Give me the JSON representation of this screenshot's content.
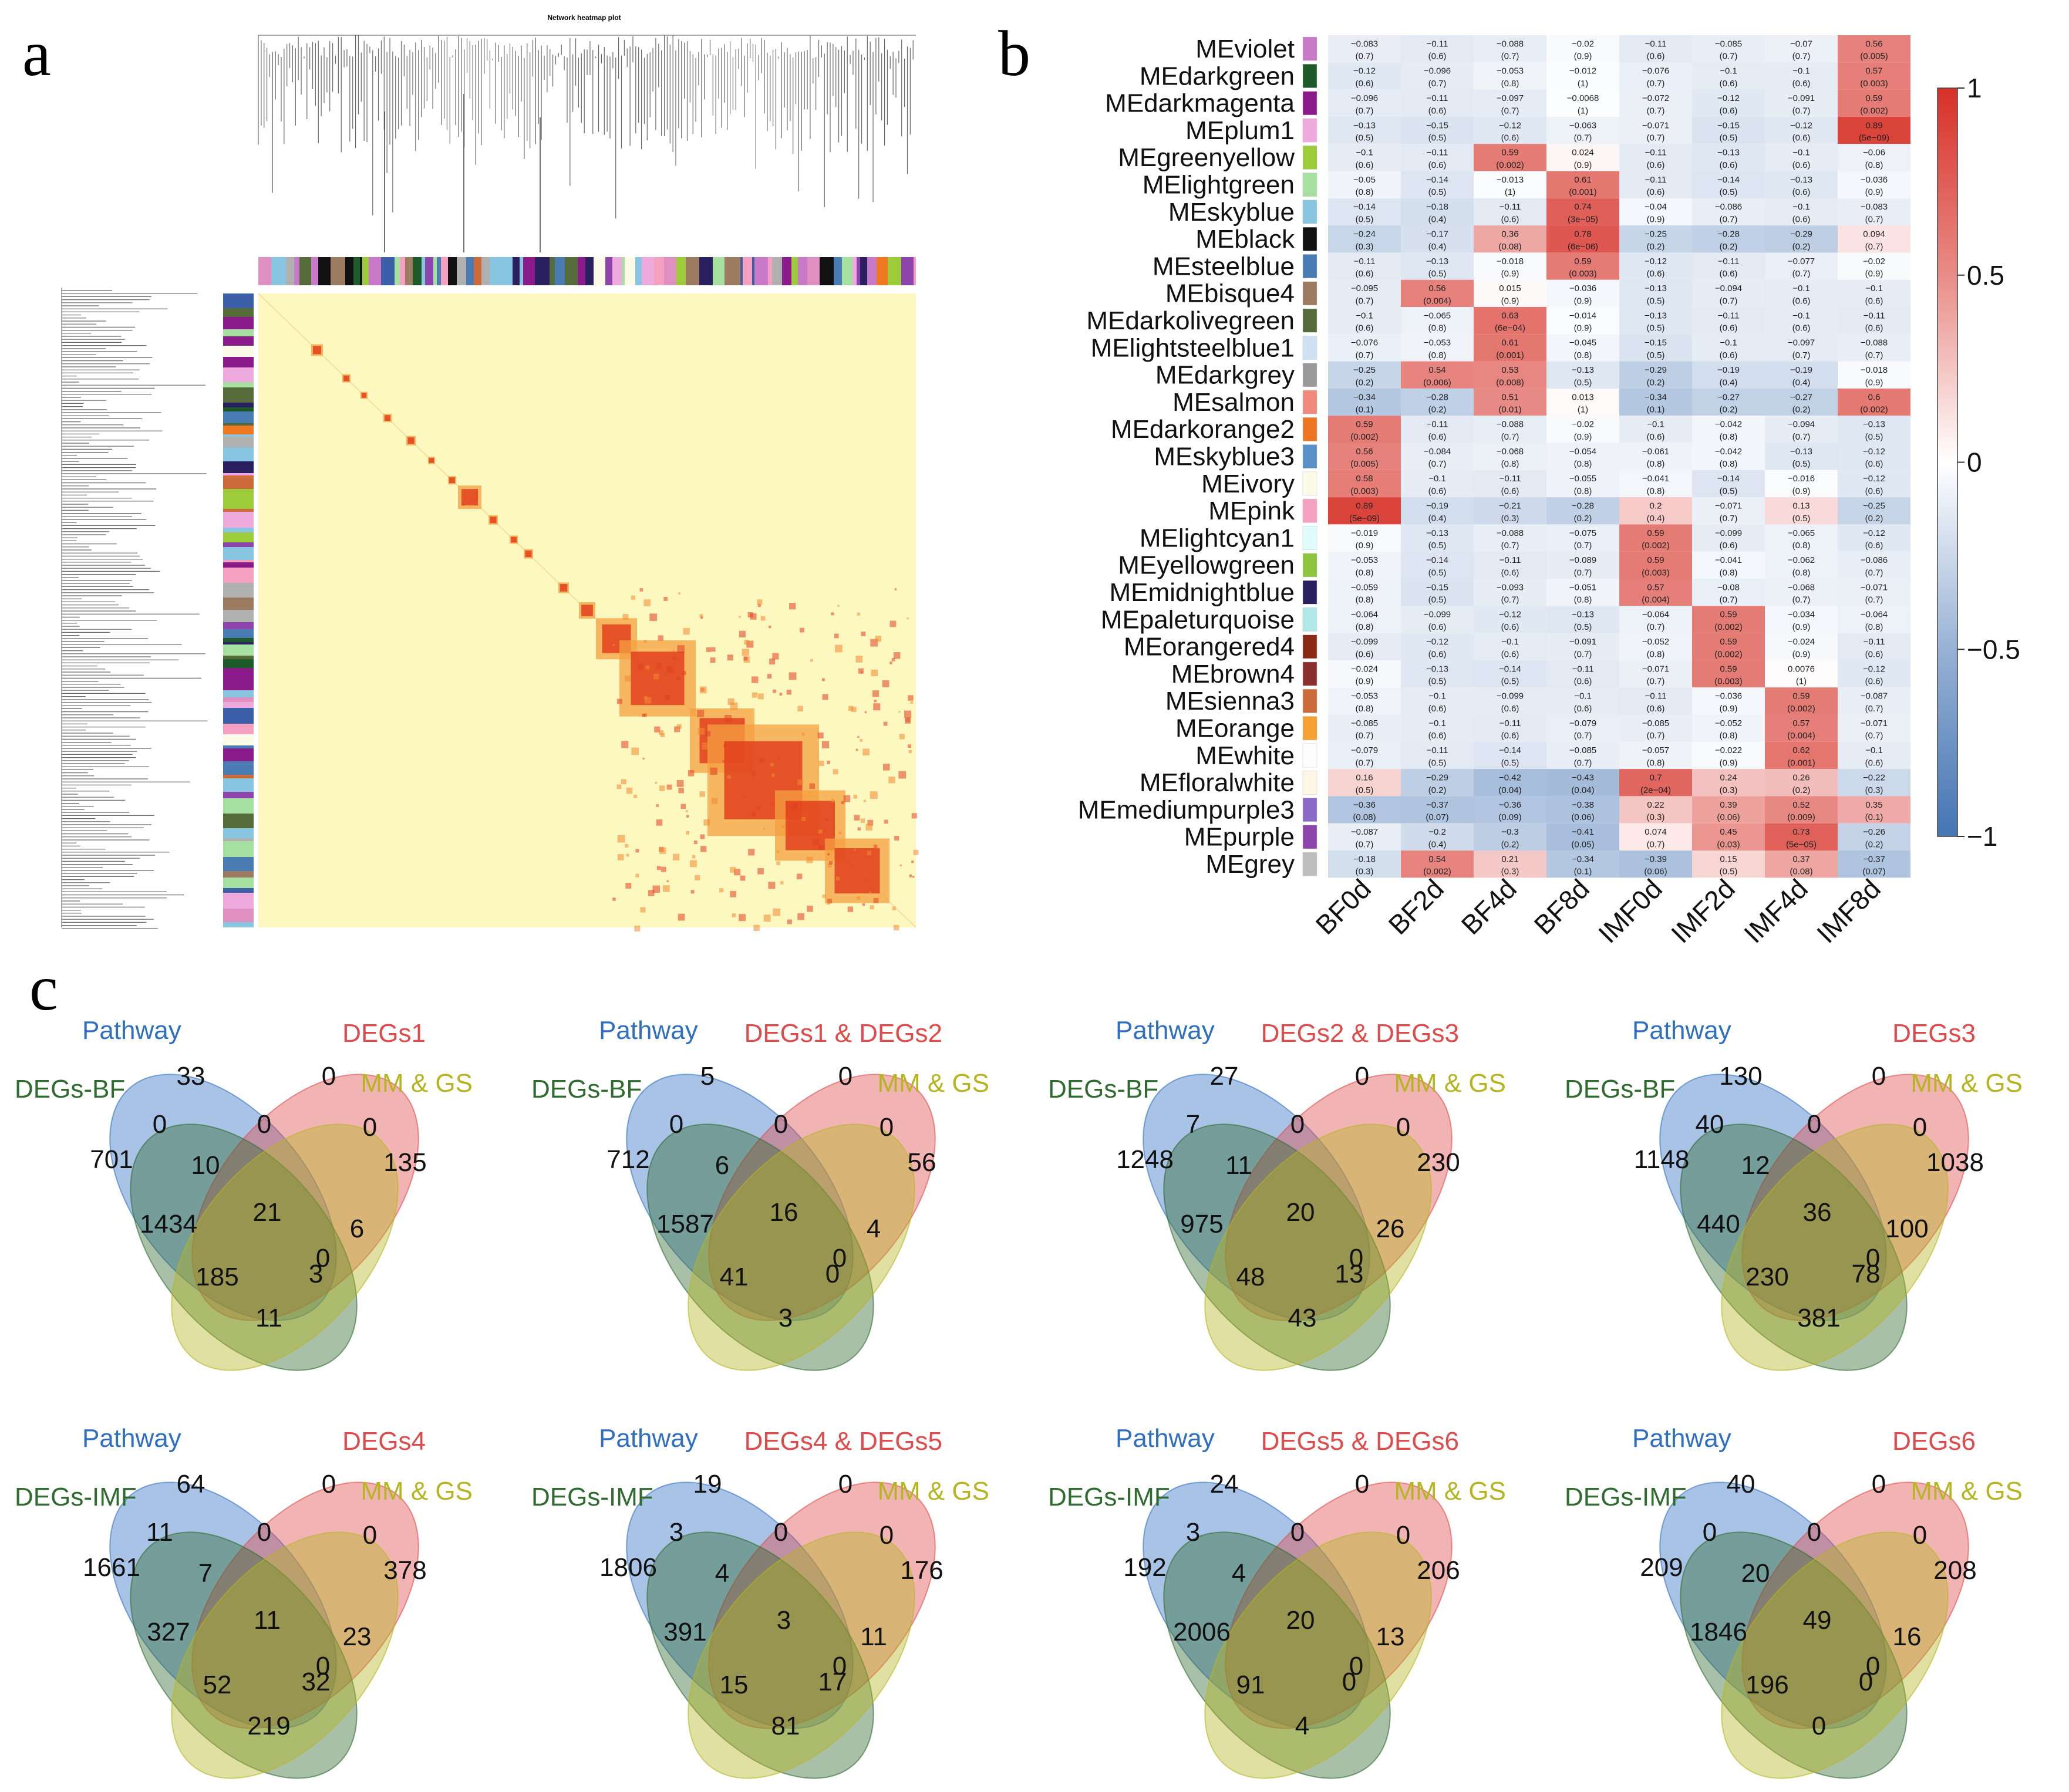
{
  "panels": {
    "a": "a",
    "b": "b",
    "c": "c"
  },
  "panel_a": {
    "title": "Network heatmap plot"
  },
  "panel_b": {
    "colorbar": {
      "ticks": [
        "1",
        "0.5",
        "0",
        "−0.5",
        "−1"
      ],
      "tick_values": [
        1,
        0.5,
        0,
        -0.5,
        -1
      ]
    },
    "headers": [
      "BF0d",
      "BF2d",
      "BF4d",
      "BF8d",
      "IMF0d",
      "IMF2d",
      "IMF4d",
      "IMF8d"
    ],
    "modules": [
      {
        "name": "MEviolet",
        "color": "#c87ac8"
      },
      {
        "name": "MEdarkgreen",
        "color": "#1e5a2a"
      },
      {
        "name": "MEdarkmagenta",
        "color": "#8b1a8b"
      },
      {
        "name": "MEplum1",
        "color": "#eeaadd"
      },
      {
        "name": "MEgreenyellow",
        "color": "#9ccc3a"
      },
      {
        "name": "MElightgreen",
        "color": "#a6e0a0"
      },
      {
        "name": "MEskyblue",
        "color": "#87c5e0"
      },
      {
        "name": "MEblack",
        "color": "#111111"
      },
      {
        "name": "MEsteelblue",
        "color": "#4a7cb4"
      },
      {
        "name": "MEbisque4",
        "color": "#9c7b60"
      },
      {
        "name": "MEdarkolivegreen",
        "color": "#556b3a"
      },
      {
        "name": "MElightsteelblue1",
        "color": "#cfe0f5"
      },
      {
        "name": "MEdarkgrey",
        "color": "#9a9a9a"
      },
      {
        "name": "MEsalmon",
        "color": "#f08a7a"
      },
      {
        "name": "MEdarkorange2",
        "color": "#ee7622"
      },
      {
        "name": "MEskyblue3",
        "color": "#5a8fc8"
      },
      {
        "name": "MEivory",
        "color": "#fbfbe8"
      },
      {
        "name": "MEpink",
        "color": "#f5a0c0"
      },
      {
        "name": "MElightcyan1",
        "color": "#e0fbfb"
      },
      {
        "name": "MEyellowgreen",
        "color": "#8ec440"
      },
      {
        "name": "MEmidnightblue",
        "color": "#2a2060"
      },
      {
        "name": "MEpaleturquoise",
        "color": "#b0e8e8"
      },
      {
        "name": "MEorangered4",
        "color": "#8b2a14"
      },
      {
        "name": "MEbrown4",
        "color": "#8b3030"
      },
      {
        "name": "MEsienna3",
        "color": "#cd6a3a"
      },
      {
        "name": "MEorange",
        "color": "#f5a030"
      },
      {
        "name": "MEwhite",
        "color": "#fdfdfd"
      },
      {
        "name": "MEfloralwhite",
        "color": "#fff6e6"
      },
      {
        "name": "MEmediumpurple3",
        "color": "#8a6ac8"
      },
      {
        "name": "MEpurple",
        "color": "#8e44ad"
      },
      {
        "name": "MEgrey",
        "color": "#bebebe"
      }
    ],
    "corr": [
      [
        -0.083,
        -0.11,
        -0.088,
        -0.02,
        -0.11,
        -0.085,
        -0.07,
        0.56
      ],
      [
        -0.12,
        -0.096,
        -0.053,
        -0.012,
        -0.076,
        -0.1,
        -0.1,
        0.57
      ],
      [
        -0.096,
        -0.11,
        -0.097,
        -0.0068,
        -0.072,
        -0.12,
        -0.091,
        0.59
      ],
      [
        -0.13,
        -0.15,
        -0.12,
        -0.063,
        -0.071,
        -0.15,
        -0.12,
        0.89
      ],
      [
        -0.1,
        -0.11,
        0.59,
        0.024,
        -0.11,
        -0.13,
        -0.1,
        -0.06
      ],
      [
        -0.05,
        -0.14,
        -0.013,
        0.61,
        -0.11,
        -0.14,
        -0.13,
        -0.036
      ],
      [
        -0.14,
        -0.18,
        -0.11,
        0.74,
        -0.04,
        -0.086,
        -0.1,
        -0.083
      ],
      [
        -0.24,
        -0.17,
        0.36,
        0.78,
        -0.25,
        -0.28,
        -0.29,
        0.094
      ],
      [
        -0.11,
        -0.13,
        -0.018,
        0.59,
        -0.12,
        -0.11,
        -0.077,
        -0.02
      ],
      [
        -0.095,
        0.56,
        0.015,
        -0.036,
        -0.13,
        -0.094,
        -0.1,
        -0.1
      ],
      [
        -0.1,
        -0.065,
        0.63,
        -0.014,
        -0.13,
        -0.11,
        -0.1,
        -0.11
      ],
      [
        -0.076,
        -0.053,
        0.61,
        -0.045,
        -0.15,
        -0.1,
        -0.097,
        -0.088
      ],
      [
        -0.25,
        0.54,
        0.53,
        -0.13,
        -0.29,
        -0.19,
        -0.19,
        -0.018
      ],
      [
        -0.34,
        -0.28,
        0.51,
        0.013,
        -0.34,
        -0.27,
        -0.27,
        0.6
      ],
      [
        0.59,
        -0.11,
        -0.088,
        -0.02,
        -0.1,
        -0.042,
        -0.094,
        -0.13
      ],
      [
        0.56,
        -0.084,
        -0.068,
        -0.054,
        -0.061,
        -0.042,
        -0.13,
        -0.12
      ],
      [
        0.58,
        -0.1,
        -0.11,
        -0.055,
        -0.041,
        -0.14,
        -0.016,
        -0.12
      ],
      [
        0.89,
        -0.19,
        -0.21,
        -0.28,
        0.2,
        -0.071,
        0.13,
        -0.25
      ],
      [
        -0.019,
        -0.13,
        -0.088,
        -0.075,
        0.59,
        -0.099,
        -0.065,
        -0.12
      ],
      [
        -0.053,
        -0.14,
        -0.11,
        -0.089,
        0.59,
        -0.041,
        -0.062,
        -0.086
      ],
      [
        -0.059,
        -0.15,
        -0.093,
        -0.051,
        0.57,
        -0.08,
        -0.068,
        -0.071
      ],
      [
        -0.064,
        -0.099,
        -0.12,
        -0.13,
        -0.064,
        0.59,
        -0.034,
        -0.064
      ],
      [
        -0.099,
        -0.12,
        -0.1,
        -0.091,
        -0.052,
        0.59,
        -0.024,
        -0.11
      ],
      [
        -0.024,
        -0.13,
        -0.14,
        -0.11,
        -0.071,
        0.59,
        0.0076,
        -0.12
      ],
      [
        -0.053,
        -0.1,
        -0.099,
        -0.1,
        -0.11,
        -0.036,
        0.59,
        -0.087
      ],
      [
        -0.085,
        -0.1,
        -0.11,
        -0.079,
        -0.085,
        -0.052,
        0.57,
        -0.071
      ],
      [
        -0.079,
        -0.11,
        -0.14,
        -0.085,
        -0.057,
        -0.022,
        0.62,
        -0.1
      ],
      [
        0.16,
        -0.29,
        -0.42,
        -0.43,
        0.7,
        0.24,
        0.26,
        -0.22
      ],
      [
        -0.36,
        -0.37,
        -0.36,
        -0.38,
        0.22,
        0.39,
        0.52,
        0.35
      ],
      [
        -0.087,
        -0.2,
        -0.3,
        -0.41,
        0.074,
        0.45,
        0.73,
        -0.26
      ],
      [
        -0.18,
        0.54,
        0.21,
        -0.34,
        -0.39,
        0.15,
        0.37,
        -0.37
      ]
    ],
    "pval": [
      [
        "(0.7)",
        "(0.6)",
        "(0.7)",
        "(0.9)",
        "(0.6)",
        "(0.7)",
        "(0.7)",
        "(0.005)"
      ],
      [
        "(0.6)",
        "(0.7)",
        "(0.8)",
        "(1)",
        "(0.7)",
        "(0.6)",
        "(0.6)",
        "(0.003)"
      ],
      [
        "(0.7)",
        "(0.6)",
        "(0.7)",
        "(1)",
        "(0.7)",
        "(0.6)",
        "(0.7)",
        "(0.002)"
      ],
      [
        "(0.5)",
        "(0.5)",
        "(0.6)",
        "(0.7)",
        "(0.7)",
        "(0.5)",
        "(0.6)",
        "(5e−09)"
      ],
      [
        "(0.6)",
        "(0.6)",
        "(0.002)",
        "(0.9)",
        "(0.6)",
        "(0.6)",
        "(0.6)",
        "(0.8)"
      ],
      [
        "(0.8)",
        "(0.5)",
        "(1)",
        "(0.001)",
        "(0.6)",
        "(0.5)",
        "(0.6)",
        "(0.9)"
      ],
      [
        "(0.5)",
        "(0.4)",
        "(0.6)",
        "(3e−05)",
        "(0.9)",
        "(0.7)",
        "(0.6)",
        "(0.7)"
      ],
      [
        "(0.3)",
        "(0.4)",
        "(0.08)",
        "(6e−06)",
        "(0.2)",
        "(0.2)",
        "(0.2)",
        "(0.7)"
      ],
      [
        "(0.6)",
        "(0.5)",
        "(0.9)",
        "(0.003)",
        "(0.6)",
        "(0.6)",
        "(0.7)",
        "(0.9)"
      ],
      [
        "(0.7)",
        "(0.004)",
        "(0.9)",
        "(0.9)",
        "(0.5)",
        "(0.7)",
        "(0.6)",
        "(0.6)"
      ],
      [
        "(0.6)",
        "(0.8)",
        "(6e−04)",
        "(0.9)",
        "(0.5)",
        "(0.6)",
        "(0.6)",
        "(0.6)"
      ],
      [
        "(0.7)",
        "(0.8)",
        "(0.001)",
        "(0.8)",
        "(0.5)",
        "(0.6)",
        "(0.7)",
        "(0.7)"
      ],
      [
        "(0.2)",
        "(0.006)",
        "(0.008)",
        "(0.5)",
        "(0.2)",
        "(0.4)",
        "(0.4)",
        "(0.9)"
      ],
      [
        "(0.1)",
        "(0.2)",
        "(0.01)",
        "(1)",
        "(0.1)",
        "(0.2)",
        "(0.2)",
        "(0.002)"
      ],
      [
        "(0.002)",
        "(0.6)",
        "(0.7)",
        "(0.9)",
        "(0.6)",
        "(0.8)",
        "(0.7)",
        "(0.5)"
      ],
      [
        "(0.005)",
        "(0.7)",
        "(0.8)",
        "(0.8)",
        "(0.8)",
        "(0.8)",
        "(0.5)",
        "(0.6)"
      ],
      [
        "(0.003)",
        "(0.6)",
        "(0.6)",
        "(0.8)",
        "(0.8)",
        "(0.5)",
        "(0.9)",
        "(0.6)"
      ],
      [
        "(5e−09)",
        "(0.4)",
        "(0.3)",
        "(0.2)",
        "(0.4)",
        "(0.7)",
        "(0.5)",
        "(0.2)"
      ],
      [
        "(0.9)",
        "(0.5)",
        "(0.7)",
        "(0.7)",
        "(0.002)",
        "(0.6)",
        "(0.8)",
        "(0.6)"
      ],
      [
        "(0.8)",
        "(0.5)",
        "(0.6)",
        "(0.7)",
        "(0.003)",
        "(0.8)",
        "(0.8)",
        "(0.7)"
      ],
      [
        "(0.8)",
        "(0.5)",
        "(0.7)",
        "(0.8)",
        "(0.004)",
        "(0.7)",
        "(0.7)",
        "(0.7)"
      ],
      [
        "(0.8)",
        "(0.6)",
        "(0.6)",
        "(0.5)",
        "(0.7)",
        "(0.002)",
        "(0.9)",
        "(0.8)"
      ],
      [
        "(0.6)",
        "(0.6)",
        "(0.6)",
        "(0.7)",
        "(0.8)",
        "(0.002)",
        "(0.9)",
        "(0.6)"
      ],
      [
        "(0.9)",
        "(0.5)",
        "(0.5)",
        "(0.6)",
        "(0.7)",
        "(0.003)",
        "(1)",
        "(0.6)"
      ],
      [
        "(0.8)",
        "(0.6)",
        "(0.6)",
        "(0.6)",
        "(0.6)",
        "(0.9)",
        "(0.002)",
        "(0.7)"
      ],
      [
        "(0.7)",
        "(0.6)",
        "(0.6)",
        "(0.7)",
        "(0.7)",
        "(0.8)",
        "(0.004)",
        "(0.7)"
      ],
      [
        "(0.7)",
        "(0.5)",
        "(0.5)",
        "(0.7)",
        "(0.8)",
        "(0.9)",
        "(0.001)",
        "(0.6)"
      ],
      [
        "(0.5)",
        "(0.2)",
        "(0.04)",
        "(0.04)",
        "(2e−04)",
        "(0.3)",
        "(0.2)",
        "(0.3)"
      ],
      [
        "(0.08)",
        "(0.07)",
        "(0.09)",
        "(0.06)",
        "(0.3)",
        "(0.06)",
        "(0.009)",
        "(0.1)"
      ],
      [
        "(0.7)",
        "(0.4)",
        "(0.2)",
        "(0.05)",
        "(0.7)",
        "(0.03)",
        "(5e−05)",
        "(0.2)"
      ],
      [
        "(0.3)",
        "(0.002)",
        "(0.3)",
        "(0.1)",
        "(0.06)",
        "(0.5)",
        "(0.08)",
        "(0.07)"
      ]
    ]
  },
  "panel_c": {
    "venns": [
      {
        "labels": [
          "Pathway",
          "DEGs1",
          "DEGs-BF",
          "MM & GS"
        ],
        "values": {
          "b": "33",
          "r": "0",
          "br": "0",
          "g": "701",
          "bg": "0",
          "brg": "10",
          "rg": "1434",
          "y": "135",
          "ry": "0",
          "bry": "21",
          "by": "6",
          "gy": "11",
          "ryg": "185",
          "byg": "3",
          "all": "0"
        }
      },
      {
        "labels": [
          "Pathway",
          "DEGs1 & DEGs2",
          "DEGs-BF",
          "MM & GS"
        ],
        "values": {
          "b": "5",
          "r": "0",
          "br": "0",
          "g": "712",
          "bg": "0",
          "brg": "6",
          "rg": "1587",
          "y": "56",
          "ry": "0",
          "bry": "16",
          "by": "4",
          "gy": "3",
          "ryg": "41",
          "byg": "0",
          "all": "0"
        }
      },
      {
        "labels": [
          "Pathway",
          "DEGs2 & DEGs3",
          "DEGs-BF",
          "MM & GS"
        ],
        "values": {
          "b": "27",
          "r": "0",
          "br": "0",
          "g": "1248",
          "bg": "7",
          "brg": "11",
          "rg": "975",
          "y": "230",
          "ry": "0",
          "bry": "20",
          "by": "26",
          "gy": "43",
          "ryg": "48",
          "byg": "13",
          "all": "0"
        }
      },
      {
        "labels": [
          "Pathway",
          "DEGs3",
          "DEGs-BF",
          "MM & GS"
        ],
        "values": {
          "b": "130",
          "r": "0",
          "br": "0",
          "g": "1148",
          "bg": "40",
          "brg": "12",
          "rg": "440",
          "y": "1038",
          "ry": "0",
          "bry": "36",
          "by": "100",
          "gy": "381",
          "ryg": "230",
          "byg": "78",
          "all": "0"
        }
      },
      {
        "labels": [
          "Pathway",
          "DEGs4",
          "DEGs-IMF",
          "MM & GS"
        ],
        "values": {
          "b": "64",
          "r": "0",
          "br": "0",
          "g": "1661",
          "bg": "11",
          "brg": "7",
          "rg": "327",
          "y": "378",
          "ry": "0",
          "bry": "11",
          "by": "23",
          "gy": "219",
          "ryg": "52",
          "byg": "32",
          "all": "0"
        }
      },
      {
        "labels": [
          "Pathway",
          "DEGs4 & DEGs5",
          "DEGs-IMF",
          "MM & GS"
        ],
        "values": {
          "b": "19",
          "r": "0",
          "br": "0",
          "g": "1806",
          "bg": "3",
          "brg": "4",
          "rg": "391",
          "y": "176",
          "ry": "0",
          "bry": "3",
          "by": "11",
          "gy": "81",
          "ryg": "15",
          "byg": "17",
          "all": "0"
        }
      },
      {
        "labels": [
          "Pathway",
          "DEGs5 & DEGs6",
          "DEGs-IMF",
          "MM & GS"
        ],
        "values": {
          "b": "24",
          "r": "0",
          "br": "0",
          "g": "192",
          "bg": "3",
          "brg": "4",
          "rg": "2006",
          "y": "206",
          "ry": "0",
          "bry": "20",
          "by": "13",
          "gy": "4",
          "ryg": "91",
          "byg": "0",
          "all": "0"
        }
      },
      {
        "labels": [
          "Pathway",
          "DEGs6",
          "DEGs-IMF",
          "MM & GS"
        ],
        "values": {
          "b": "40",
          "r": "0",
          "br": "0",
          "g": "209",
          "bg": "0",
          "brg": "20",
          "rg": "1846",
          "y": "208",
          "ry": "0",
          "bry": "49",
          "by": "16",
          "gy": "0",
          "ryg": "196",
          "byg": "0",
          "all": "0"
        }
      }
    ],
    "colors": {
      "pathway": "#2f6fc0",
      "degs": "#e04a4a",
      "degsbf": "#2f6a2f",
      "mmgs": "#b5b521"
    }
  }
}
